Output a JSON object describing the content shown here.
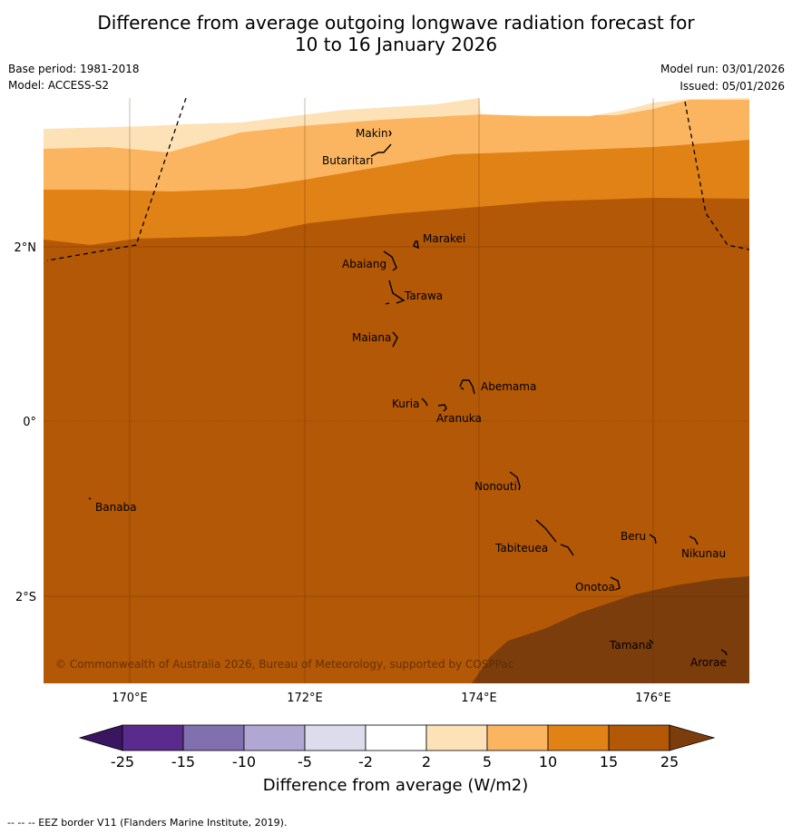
{
  "title_line1": "Difference from average outgoing longwave radiation forecast for",
  "title_line2": "10 to 16 January 2026",
  "base_period": "Base period: 1981-2018",
  "model": "Model: ACCESS-S2",
  "model_run": "Model run: 03/01/2026",
  "issued": "Issued: 05/01/2026",
  "map": {
    "lat_labels": [
      "2°N",
      "0°",
      "2°S"
    ],
    "lon_labels": [
      "170°E",
      "172°E",
      "174°E",
      "176°E"
    ],
    "places": [
      {
        "name": "Makin"
      },
      {
        "name": "Butaritari"
      },
      {
        "name": "Marakei"
      },
      {
        "name": "Abaiang"
      },
      {
        "name": "Tarawa"
      },
      {
        "name": "Maiana"
      },
      {
        "name": "Abemama"
      },
      {
        "name": "Kuria"
      },
      {
        "name": "Aranuka"
      },
      {
        "name": "Nonouti"
      },
      {
        "name": "Banaba"
      },
      {
        "name": "Beru"
      },
      {
        "name": "Nikunau"
      },
      {
        "name": "Tabiteuea"
      },
      {
        "name": "Onotoa"
      },
      {
        "name": "Tamana"
      },
      {
        "name": "Arorae"
      }
    ],
    "copyright": "© Commonwealth of Australia 2026, Bureau of Meteorology, supported by COSPPac"
  },
  "colorbar": {
    "tick_labels": [
      "-25",
      "-15",
      "-10",
      "-5",
      "-2",
      "2",
      "5",
      "10",
      "15",
      "25"
    ],
    "colors": [
      "#3a1560",
      "#5a2b8c",
      "#8070b0",
      "#b0a8d3",
      "#dcdcec",
      "#ffffff",
      "#fde2b8",
      "#fbb560",
      "#e08216",
      "#b25806",
      "#7c3d0c"
    ],
    "label": "Difference from average (W/m2)"
  },
  "footer": "--  --  -- EEZ border V11 (Flanders Marine Institute, 2019)."
}
